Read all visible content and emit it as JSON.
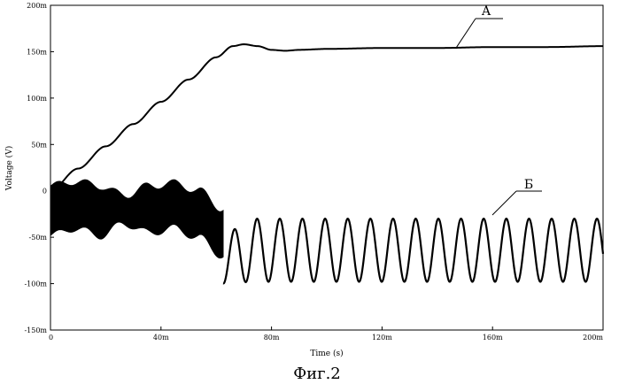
{
  "chart_data": {
    "type": "line",
    "xlabel": "Time (s)",
    "ylabel": "Voltage (V)",
    "xlim": [
      0,
      0.2
    ],
    "ylim": [
      -0.15,
      0.2
    ],
    "x_ticks": [
      "0",
      "40m",
      "80m",
      "120m",
      "160m",
      "200m"
    ],
    "y_ticks": [
      "200m",
      "150m",
      "100m",
      "50m",
      "0",
      "-50m",
      "-100m",
      "-150m"
    ],
    "grid": false,
    "caption": "Фиг.2",
    "series": [
      {
        "name": "А",
        "x": [
          0,
          0.01,
          0.02,
          0.03,
          0.04,
          0.05,
          0.06,
          0.066,
          0.07,
          0.075,
          0.08,
          0.085,
          0.09,
          0.1,
          0.12,
          0.14,
          0.16,
          0.18,
          0.2
        ],
        "y": [
          0,
          0.024,
          0.048,
          0.072,
          0.096,
          0.12,
          0.144,
          0.156,
          0.158,
          0.156,
          0.152,
          0.151,
          0.152,
          0.153,
          0.154,
          0.154,
          0.155,
          0.155,
          0.156
        ]
      },
      {
        "name": "Б",
        "description_band_x": [
          0,
          0.0625
        ],
        "band_upper": [
          0.005,
          0.01,
          0.005,
          -0.005,
          0.005,
          0.008,
          0.0,
          -0.02
        ],
        "band_lower": [
          -0.048,
          -0.04,
          -0.048,
          -0.035,
          -0.045,
          -0.04,
          -0.05,
          -0.07
        ],
        "oscillation": {
          "start": 0.0625,
          "end": 0.2,
          "period": 0.0082,
          "min": -0.098,
          "max": -0.03,
          "first_min": -0.11
        }
      }
    ],
    "annotations": [
      {
        "text": "А",
        "at_x": 0.145,
        "at_y": 0.155
      },
      {
        "text": "Б",
        "at_x": 0.16,
        "at_y": -0.03
      }
    ]
  }
}
